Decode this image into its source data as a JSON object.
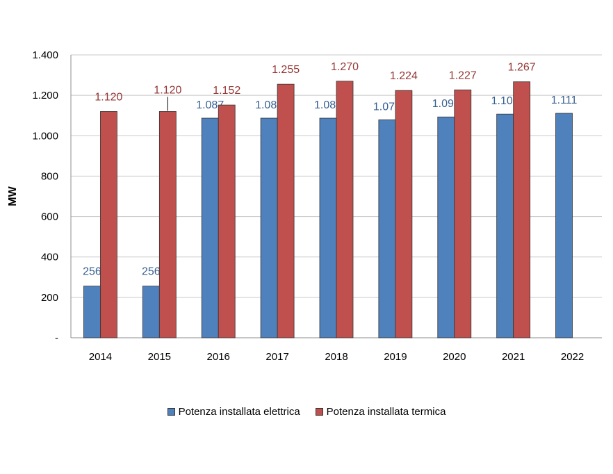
{
  "chart_data": {
    "type": "bar",
    "categories": [
      "2014",
      "2015",
      "2016",
      "2017",
      "2018",
      "2019",
      "2020",
      "2021",
      "2022"
    ],
    "series": [
      {
        "name": "Potenza installata elettrica",
        "values": [
          256,
          256,
          1087,
          1087,
          1087,
          1079,
          1093,
          1107,
          1111
        ],
        "labels": [
          "256",
          "256",
          "1.087",
          "1.087",
          "1.087",
          "1.079",
          "1.093",
          "1.107",
          "1.111"
        ],
        "color": "#4F81BD",
        "label_color": "#376092"
      },
      {
        "name": "Potenza installata termica",
        "values": [
          1120,
          1120,
          1152,
          1255,
          1270,
          1224,
          1227,
          1267,
          null
        ],
        "labels": [
          "1.120",
          "1.120",
          "1.152",
          "1.255",
          "1.270",
          "1.224",
          "1.227",
          "1.267",
          ""
        ],
        "color": "#C0504D",
        "label_color": "#953735"
      }
    ],
    "ylabel": "MW",
    "ylim": [
      0,
      1400
    ],
    "yticks": [
      0,
      200,
      400,
      600,
      800,
      1000,
      1200,
      1400
    ],
    "ytick_labels": [
      "-",
      "200",
      "400",
      "600",
      "800",
      "1.000",
      "1.200",
      "1.400"
    ],
    "grid": true,
    "legend_position": "bottom"
  }
}
